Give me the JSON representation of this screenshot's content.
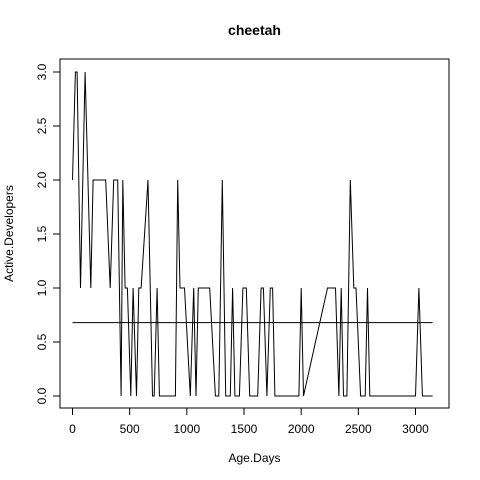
{
  "chart_data": {
    "type": "line",
    "title": "cheetah",
    "xlabel": "Age.Days",
    "ylabel": "Active.Developers",
    "xlim": [
      -100,
      3250
    ],
    "ylim": [
      -0.1,
      3.1
    ],
    "xticks": [
      0,
      500,
      1000,
      1500,
      2000,
      2500,
      3000
    ],
    "yticks": [
      0.0,
      0.5,
      1.0,
      1.5,
      2.0,
      2.5,
      3.0
    ],
    "ytick_labels": [
      "0.0",
      "0.5",
      "1.0",
      "1.5",
      "2.0",
      "2.5",
      "3.0"
    ],
    "grid": false,
    "line_color": "#000000",
    "series": [
      {
        "x": [
          0,
          25,
          40,
          70,
          110,
          160,
          180,
          290,
          330,
          360,
          395,
          425,
          440,
          460,
          480,
          510,
          530,
          560,
          580,
          600,
          660,
          700,
          715,
          740,
          760,
          780,
          800,
          900,
          920,
          940,
          980,
          1030,
          1060,
          1080,
          1100,
          1120,
          1140,
          1160,
          1200,
          1250,
          1280,
          1310,
          1340,
          1380,
          1400,
          1420,
          1440,
          1460,
          1490,
          1520,
          1550,
          1580,
          1620,
          1650,
          1670,
          1700,
          1730,
          1750,
          1770,
          1790,
          1800,
          1860,
          1950,
          1980,
          2000,
          2020,
          2230,
          2300,
          2330,
          2350,
          2370,
          2400,
          2430,
          2460,
          2480,
          2520,
          2560,
          2580,
          2600,
          2700,
          2950,
          3000,
          3030,
          3060,
          3150
        ],
        "values": [
          2,
          3,
          3,
          1,
          3,
          1,
          2,
          2,
          1,
          2,
          2,
          0,
          2,
          1,
          1,
          0,
          1,
          0,
          1,
          1,
          2,
          0,
          0,
          1,
          0,
          0,
          0,
          0,
          2,
          1,
          1,
          0,
          1,
          0,
          1,
          1,
          1,
          1,
          1,
          0,
          0,
          2,
          0,
          0,
          1,
          0,
          0,
          0,
          1,
          1,
          0,
          0,
          0,
          1,
          1,
          0,
          1,
          1,
          0,
          0,
          0,
          0,
          0,
          0,
          1,
          0,
          1,
          1,
          0,
          1,
          0,
          0,
          2,
          1,
          1,
          0,
          0,
          1,
          0,
          0,
          0,
          0,
          1,
          0,
          0
        ]
      },
      {
        "x": [
          0,
          3150
        ],
        "values": [
          0.68,
          0.68
        ]
      }
    ]
  }
}
